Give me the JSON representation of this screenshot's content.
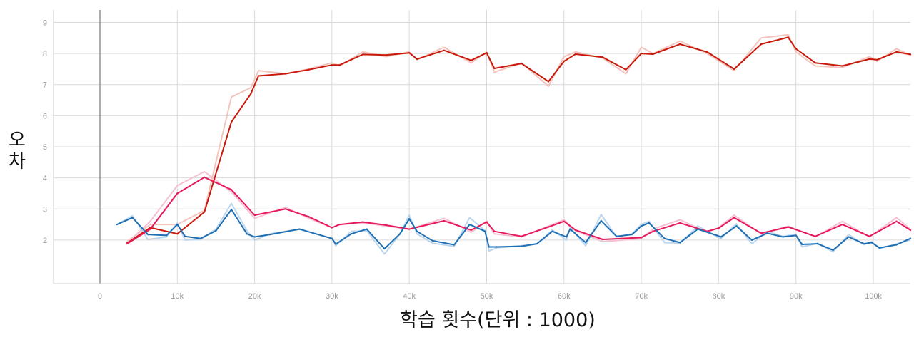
{
  "chart_data": {
    "type": "line",
    "title": "",
    "xlabel": "학습 횟수(단위 : 1000)",
    "ylabel": "오차",
    "xlim": [
      -6000,
      104800
    ],
    "ylim": [
      0.6,
      9.4
    ],
    "grid": true,
    "x_ticks": [
      0,
      10000,
      20000,
      30000,
      40000,
      50000,
      60000,
      70000,
      80000,
      90000,
      100000
    ],
    "x_tick_labels": [
      "0",
      "10k",
      "20k",
      "30k",
      "40k",
      "50k",
      "60k",
      "70k",
      "80k",
      "90k",
      "100k"
    ],
    "y_ticks": [
      2,
      3,
      4,
      5,
      6,
      7,
      8,
      9
    ],
    "y_tick_labels": [
      "2",
      "3",
      "4",
      "5",
      "6",
      "7",
      "8",
      "9"
    ],
    "series": [
      {
        "color": "#c8190b",
        "raw_color": "#f3c3bd",
        "x": [
          3500,
          6500,
          10000,
          13500,
          17000,
          19500,
          20500,
          24000,
          27000,
          30000,
          31000,
          34000,
          37000,
          40000,
          41000,
          44500,
          48000,
          50000,
          51000,
          54500,
          58000,
          60000,
          61500,
          65000,
          68000,
          70000,
          71500,
          75000,
          78500,
          82000,
          85500,
          89000,
          90000,
          92500,
          96000,
          99500,
          100500,
          103000,
          104800
        ],
        "values": [
          1.9,
          2.4,
          2.2,
          2.9,
          5.8,
          6.7,
          7.28,
          7.35,
          7.48,
          7.63,
          7.63,
          7.97,
          7.95,
          8.02,
          7.82,
          8.1,
          7.78,
          8.02,
          7.52,
          7.68,
          7.1,
          7.75,
          7.98,
          7.88,
          7.48,
          8.0,
          7.98,
          8.3,
          8.05,
          7.5,
          8.3,
          8.52,
          8.15,
          7.7,
          7.6,
          7.82,
          7.8,
          8.05,
          7.97
        ],
        "raw_values": [
          1.95,
          2.5,
          2.5,
          2.95,
          6.6,
          6.9,
          7.45,
          7.35,
          7.5,
          7.7,
          7.6,
          8.05,
          7.9,
          8.05,
          7.8,
          8.2,
          7.7,
          8.05,
          7.4,
          7.7,
          6.95,
          7.9,
          8.05,
          7.85,
          7.35,
          8.2,
          8.0,
          8.4,
          8.0,
          7.45,
          8.5,
          8.6,
          8.05,
          7.6,
          7.55,
          7.9,
          7.75,
          8.15,
          7.95
        ]
      },
      {
        "color": "#e8195a",
        "raw_color": "#f6c0d4",
        "x": [
          3500,
          6500,
          10000,
          13500,
          17000,
          20000,
          24000,
          27000,
          30000,
          31000,
          34000,
          37000,
          40000,
          44500,
          48000,
          50000,
          51000,
          54500,
          58000,
          60000,
          61500,
          65000,
          70000,
          71500,
          75000,
          78500,
          80000,
          82000,
          85500,
          89000,
          92500,
          96000,
          99500,
          103000,
          104800
        ],
        "values": [
          1.88,
          2.35,
          3.5,
          4.02,
          3.62,
          2.8,
          3.0,
          2.75,
          2.4,
          2.5,
          2.58,
          2.48,
          2.35,
          2.62,
          2.32,
          2.58,
          2.28,
          2.12,
          2.42,
          2.6,
          2.32,
          2.02,
          2.08,
          2.28,
          2.55,
          2.28,
          2.38,
          2.72,
          2.22,
          2.42,
          2.12,
          2.5,
          2.12,
          2.6,
          2.32
        ],
        "raw_values": [
          1.9,
          2.6,
          3.75,
          4.2,
          3.55,
          2.7,
          3.05,
          2.7,
          2.4,
          2.5,
          2.55,
          2.45,
          2.35,
          2.7,
          2.25,
          2.6,
          2.2,
          2.1,
          2.45,
          2.65,
          2.3,
          1.95,
          2.05,
          2.35,
          2.65,
          2.25,
          2.4,
          2.8,
          2.2,
          2.45,
          2.1,
          2.6,
          2.1,
          2.72,
          2.35
        ]
      },
      {
        "color": "#1f6fb4",
        "raw_color": "#bcd6ee",
        "x": [
          2200,
          4200,
          6200,
          8600,
          10000,
          11000,
          13000,
          15000,
          17000,
          19000,
          20000,
          22000,
          25800,
          30000,
          30500,
          32500,
          34500,
          36800,
          38800,
          40000,
          41000,
          43000,
          45800,
          47800,
          49800,
          50300,
          51300,
          54500,
          56500,
          58500,
          60300,
          60800,
          62800,
          64800,
          66800,
          68800,
          70000,
          71000,
          73000,
          75000,
          77300,
          79800,
          80300,
          82300,
          84300,
          86300,
          88300,
          90000,
          90800,
          92800,
          94800,
          96800,
          98800,
          99800,
          100800,
          103000,
          104800
        ],
        "values": [
          2.5,
          2.72,
          2.18,
          2.15,
          2.5,
          2.12,
          2.05,
          2.3,
          2.98,
          2.2,
          2.1,
          2.18,
          2.35,
          2.05,
          1.87,
          2.2,
          2.35,
          1.72,
          2.2,
          2.68,
          2.28,
          1.98,
          1.85,
          2.5,
          2.28,
          1.78,
          1.78,
          1.8,
          1.88,
          2.28,
          2.1,
          2.35,
          1.92,
          2.62,
          2.12,
          2.18,
          2.45,
          2.55,
          2.05,
          1.92,
          2.35,
          2.15,
          2.1,
          2.45,
          2.0,
          2.22,
          2.1,
          2.15,
          1.86,
          1.88,
          1.68,
          2.1,
          1.88,
          1.92,
          1.75,
          1.85,
          2.05
        ],
        "raw_values": [
          2.5,
          2.78,
          2.02,
          2.1,
          2.55,
          2.0,
          2.02,
          2.35,
          3.18,
          2.3,
          2.0,
          2.2,
          2.35,
          2.05,
          1.82,
          2.28,
          2.3,
          1.55,
          2.2,
          2.8,
          2.2,
          1.9,
          1.8,
          2.72,
          2.3,
          1.65,
          1.75,
          1.82,
          1.88,
          2.32,
          2.0,
          2.4,
          1.82,
          2.82,
          2.1,
          2.2,
          2.5,
          2.6,
          1.92,
          1.9,
          2.45,
          2.1,
          2.05,
          2.52,
          1.88,
          2.28,
          2.12,
          2.18,
          1.78,
          1.9,
          1.62,
          2.18,
          1.85,
          1.95,
          1.72,
          1.88,
          2.0
        ]
      }
    ]
  }
}
